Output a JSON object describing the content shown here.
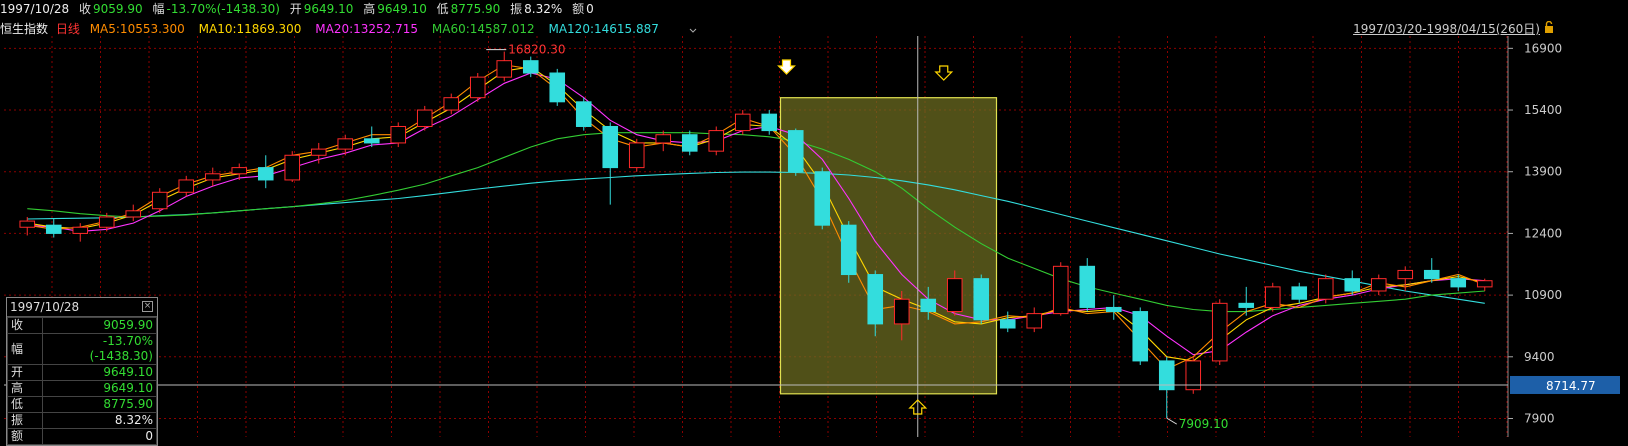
{
  "topbar": {
    "date": "1997/10/28",
    "close_label": "收",
    "close_value": "9059.90",
    "change_label": "幅",
    "change_value": "-13.70%(-1438.30)",
    "open_label": "开",
    "open_value": "9649.10",
    "high_label": "高",
    "high_value": "9649.10",
    "low_label": "低",
    "low_value": "8775.90",
    "amp_label": "振",
    "amp_value": "8.32%",
    "amount_label": "额",
    "amount_value": "0"
  },
  "indicator_bar": {
    "name": "恒生指数",
    "period": "日线",
    "ma": [
      {
        "label": "MA5:10553.300",
        "color": "#ff8c00"
      },
      {
        "label": "MA10:11869.300",
        "color": "#ffd700"
      },
      {
        "label": "MA20:13252.715",
        "color": "#ff33ff"
      },
      {
        "label": "MA60:14587.012",
        "color": "#33cc33"
      },
      {
        "label": "MA120:14615.887",
        "color": "#33dddd"
      }
    ],
    "range": "1997/03/20-1998/04/15(260日)"
  },
  "info_box": {
    "date": "1997/10/28",
    "rows": [
      {
        "key": "收",
        "value": "9059.90",
        "color": "#33dd33"
      },
      {
        "key": "幅",
        "value": "-13.70%(-1438.30)",
        "color": "#33dd33"
      },
      {
        "key": "开",
        "value": "9649.10",
        "color": "#33dd33"
      },
      {
        "key": "高",
        "value": "9649.10",
        "color": "#33dd33"
      },
      {
        "key": "低",
        "value": "8775.90",
        "color": "#33dd33"
      },
      {
        "key": "振",
        "value": "8.32%",
        "color": "#eeeeee"
      },
      {
        "key": "额",
        "value": "0",
        "color": "#eeeeee"
      }
    ]
  },
  "chart_data": {
    "type": "candlestick",
    "instrument": "恒生指数",
    "period": "日线",
    "x_range": [
      "1997/03/20",
      "1998/04/15"
    ],
    "y_ticks": [
      16900,
      15400,
      13900,
      12400,
      10900,
      9400,
      7900
    ],
    "ylim": [
      7450,
      17200
    ],
    "grid": true,
    "crosshair_price": "8714.77",
    "annotations": [
      {
        "label": "16820.30",
        "type": "max"
      },
      {
        "label": "7909.10",
        "type": "min"
      }
    ],
    "colors": {
      "up": "#ff2a2a",
      "down": "#33dddd",
      "grid": "#8b0000"
    },
    "ma_series": [
      {
        "name": "MA5",
        "color": "#ff8c00",
        "values": [
          12600,
          12500,
          12550,
          12700,
          12900,
          13300,
          13600,
          13800,
          13900,
          14000,
          14300,
          14400,
          14600,
          14800,
          14800,
          15200,
          15600,
          16100,
          16500,
          16400,
          15900,
          15200,
          14700,
          14500,
          14600,
          14500,
          14800,
          15200,
          15000,
          14300,
          13200,
          11800,
          10550,
          10650,
          10500,
          10200,
          10250,
          10400,
          10350,
          10600,
          10450,
          10500,
          9800,
          9100,
          9400,
          10000,
          10500,
          10700,
          10600,
          10850,
          10950,
          11200,
          11100,
          11250,
          11400,
          11150
        ]
      },
      {
        "name": "MA10",
        "color": "#ffd700",
        "values": [
          12650,
          12550,
          12520,
          12650,
          12850,
          13200,
          13500,
          13750,
          13850,
          13950,
          14200,
          14350,
          14500,
          14700,
          14750,
          15100,
          15450,
          15900,
          16350,
          16450,
          16000,
          15400,
          14900,
          14600,
          14600,
          14500,
          14700,
          15050,
          15000,
          14500,
          13600,
          12300,
          11100,
          10800,
          10550,
          10250,
          10200,
          10350,
          10400,
          10550,
          10500,
          10550,
          10050,
          9400,
          9300,
          9800,
          10300,
          10600,
          10700,
          10850,
          10950,
          11100,
          11150,
          11250,
          11350,
          11200
        ]
      },
      {
        "name": "MA20",
        "color": "#ff33ff",
        "values": [
          12600,
          12550,
          12450,
          12500,
          12650,
          12950,
          13300,
          13550,
          13750,
          13800,
          14000,
          14200,
          14350,
          14550,
          14600,
          14950,
          15250,
          15650,
          16050,
          16300,
          16150,
          15700,
          15150,
          14800,
          14650,
          14600,
          14650,
          14900,
          15000,
          14800,
          14200,
          13250,
          12200,
          11400,
          10800,
          10450,
          10300,
          10300,
          10400,
          10500,
          10550,
          10600,
          10400,
          9900,
          9450,
          9550,
          10000,
          10400,
          10650,
          10800,
          10900,
          11050,
          11150,
          11250,
          11300,
          11250
        ]
      },
      {
        "name": "MA60",
        "color": "#33cc33",
        "values": [
          13000,
          12950,
          12880,
          12830,
          12800,
          12820,
          12850,
          12900,
          12950,
          13000,
          13050,
          13120,
          13200,
          13320,
          13450,
          13600,
          13800,
          14000,
          14250,
          14500,
          14700,
          14800,
          14850,
          14850,
          14850,
          14850,
          14820,
          14800,
          14750,
          14650,
          14450,
          14200,
          13900,
          13500,
          13000,
          12550,
          12150,
          11800,
          11550,
          11300,
          11100,
          10950,
          10800,
          10650,
          10550,
          10500,
          10500,
          10550,
          10600,
          10650,
          10700,
          10750,
          10800,
          10900,
          10950,
          11000
        ]
      },
      {
        "name": "MA120",
        "color": "#33dddd",
        "values": [
          12750,
          12760,
          12770,
          12780,
          12800,
          12830,
          12860,
          12900,
          12950,
          13000,
          13050,
          13100,
          13150,
          13200,
          13250,
          13320,
          13400,
          13480,
          13550,
          13620,
          13680,
          13720,
          13760,
          13800,
          13830,
          13860,
          13880,
          13890,
          13890,
          13880,
          13860,
          13820,
          13760,
          13680,
          13580,
          13460,
          13320,
          13180,
          13020,
          12860,
          12700,
          12540,
          12380,
          12220,
          12060,
          11900,
          11760,
          11620,
          11480,
          11360,
          11240,
          11120,
          11000,
          10900,
          10800,
          10700
        ]
      }
    ],
    "candles": [
      {
        "o": 12550,
        "h": 12800,
        "l": 12350,
        "c": 12700
      },
      {
        "o": 12600,
        "h": 12750,
        "l": 12300,
        "c": 12400
      },
      {
        "o": 12400,
        "h": 12650,
        "l": 12200,
        "c": 12550
      },
      {
        "o": 12550,
        "h": 12900,
        "l": 12450,
        "c": 12800
      },
      {
        "o": 12800,
        "h": 13100,
        "l": 12700,
        "c": 12950
      },
      {
        "o": 13000,
        "h": 13500,
        "l": 12900,
        "c": 13400
      },
      {
        "o": 13400,
        "h": 13800,
        "l": 13300,
        "c": 13700
      },
      {
        "o": 13700,
        "h": 14000,
        "l": 13550,
        "c": 13850
      },
      {
        "o": 13850,
        "h": 14100,
        "l": 13700,
        "c": 14000
      },
      {
        "o": 14000,
        "h": 14300,
        "l": 13500,
        "c": 13700
      },
      {
        "o": 13700,
        "h": 14400,
        "l": 13650,
        "c": 14300
      },
      {
        "o": 14300,
        "h": 14600,
        "l": 14100,
        "c": 14450
      },
      {
        "o": 14450,
        "h": 14800,
        "l": 14300,
        "c": 14700
      },
      {
        "o": 14700,
        "h": 15000,
        "l": 14500,
        "c": 14600
      },
      {
        "o": 14600,
        "h": 15100,
        "l": 14500,
        "c": 15000
      },
      {
        "o": 15000,
        "h": 15500,
        "l": 14900,
        "c": 15400
      },
      {
        "o": 15400,
        "h": 15800,
        "l": 15300,
        "c": 15700
      },
      {
        "o": 15700,
        "h": 16300,
        "l": 15600,
        "c": 16200
      },
      {
        "o": 16200,
        "h": 16820,
        "l": 16100,
        "c": 16600
      },
      {
        "o": 16600,
        "h": 16700,
        "l": 16200,
        "c": 16300
      },
      {
        "o": 16300,
        "h": 16400,
        "l": 15500,
        "c": 15600
      },
      {
        "o": 15600,
        "h": 15700,
        "l": 14900,
        "c": 15000
      },
      {
        "o": 15000,
        "h": 15100,
        "l": 13100,
        "c": 14000
      },
      {
        "o": 14000,
        "h": 14700,
        "l": 13900,
        "c": 14600
      },
      {
        "o": 14600,
        "h": 14900,
        "l": 14400,
        "c": 14800
      },
      {
        "o": 14800,
        "h": 14900,
        "l": 14300,
        "c": 14400
      },
      {
        "o": 14400,
        "h": 15000,
        "l": 14300,
        "c": 14900
      },
      {
        "o": 14900,
        "h": 15400,
        "l": 14800,
        "c": 15300
      },
      {
        "o": 15300,
        "h": 15400,
        "l": 14800,
        "c": 14900
      },
      {
        "o": 14900,
        "h": 14950,
        "l": 13800,
        "c": 13900
      },
      {
        "o": 13900,
        "h": 14000,
        "l": 12500,
        "c": 12600
      },
      {
        "o": 12600,
        "h": 12700,
        "l": 11200,
        "c": 11400
      },
      {
        "o": 11400,
        "h": 11500,
        "l": 9900,
        "c": 10200
      },
      {
        "o": 10200,
        "h": 11000,
        "l": 9800,
        "c": 10800
      },
      {
        "o": 10800,
        "h": 11100,
        "l": 10300,
        "c": 10500
      },
      {
        "o": 10500,
        "h": 11500,
        "l": 10400,
        "c": 11300
      },
      {
        "o": 11300,
        "h": 11400,
        "l": 10200,
        "c": 10300
      },
      {
        "o": 10300,
        "h": 10500,
        "l": 10000,
        "c": 10100
      },
      {
        "o": 10100,
        "h": 10600,
        "l": 10000,
        "c": 10450
      },
      {
        "o": 10450,
        "h": 11700,
        "l": 10400,
        "c": 11600
      },
      {
        "o": 11600,
        "h": 11800,
        "l": 10500,
        "c": 10600
      },
      {
        "o": 10600,
        "h": 10900,
        "l": 10300,
        "c": 10500
      },
      {
        "o": 10500,
        "h": 10600,
        "l": 9200,
        "c": 9300
      },
      {
        "o": 9300,
        "h": 9400,
        "l": 7909,
        "c": 8600
      },
      {
        "o": 8600,
        "h": 9400,
        "l": 8500,
        "c": 9300
      },
      {
        "o": 9300,
        "h": 10800,
        "l": 9200,
        "c": 10700
      },
      {
        "o": 10700,
        "h": 11100,
        "l": 10400,
        "c": 10600
      },
      {
        "o": 10600,
        "h": 11200,
        "l": 10500,
        "c": 11100
      },
      {
        "o": 11100,
        "h": 11200,
        "l": 10700,
        "c": 10800
      },
      {
        "o": 10800,
        "h": 11400,
        "l": 10700,
        "c": 11300
      },
      {
        "o": 11300,
        "h": 11500,
        "l": 10900,
        "c": 11000
      },
      {
        "o": 11000,
        "h": 11400,
        "l": 10900,
        "c": 11300
      },
      {
        "o": 11300,
        "h": 11600,
        "l": 11000,
        "c": 11500
      },
      {
        "o": 11500,
        "h": 11800,
        "l": 11200,
        "c": 11300
      },
      {
        "o": 11300,
        "h": 11400,
        "l": 11000,
        "c": 11100
      },
      {
        "o": 11100,
        "h": 11300,
        "l": 11000,
        "c": 11250
      }
    ]
  }
}
